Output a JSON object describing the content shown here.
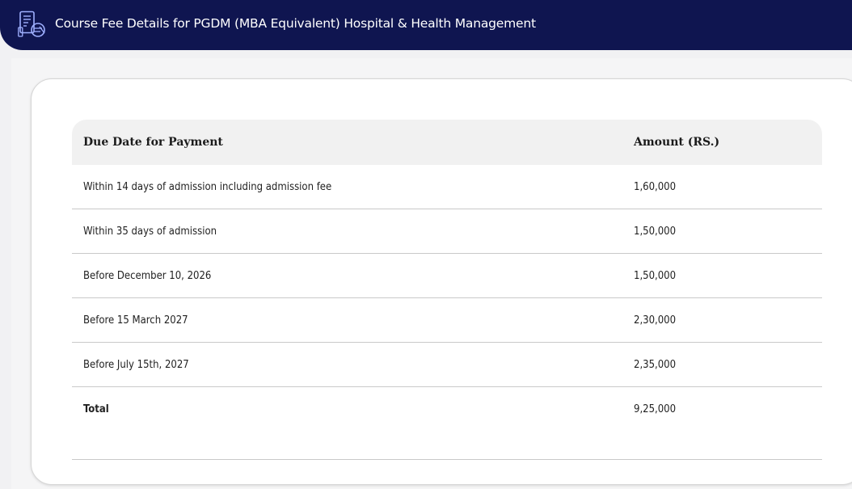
{
  "header": {
    "title": "Course Fee Details for PGDM (MBA Equivalent) Hospital & Health Management",
    "icon": "fee-receipt-icon",
    "background_color": "#0f1550"
  },
  "fee_table": {
    "columns": {
      "due_date": "Due Date for Payment",
      "amount": "Amount (RS.)"
    },
    "rows": [
      {
        "due_date": "Within 14 days of admission including admission fee",
        "amount": "1,60,000"
      },
      {
        "due_date": "Within 35 days of admission",
        "amount": "1,50,000"
      },
      {
        "due_date": "Before December 10, 2026",
        "amount": "1,50,000"
      },
      {
        "due_date": "Before 15 March 2027",
        "amount": "2,30,000"
      },
      {
        "due_date": "Before July 15th, 2027",
        "amount": "2,35,000"
      }
    ],
    "total": {
      "label": "Total",
      "amount": "9,25,000"
    }
  }
}
